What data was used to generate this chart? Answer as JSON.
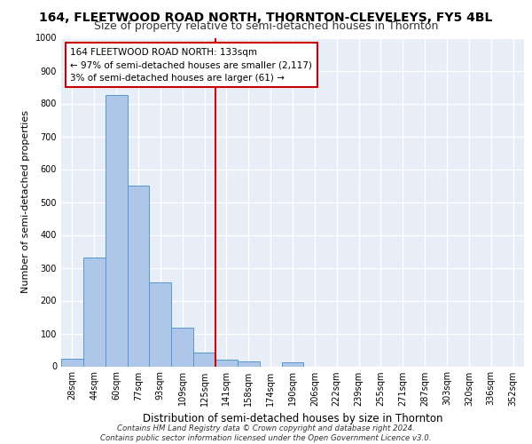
{
  "title1": "164, FLEETWOOD ROAD NORTH, THORNTON-CLEVELEYS, FY5 4BL",
  "title2": "Size of property relative to semi-detached houses in Thornton",
  "xlabel": "Distribution of semi-detached houses by size in Thornton",
  "ylabel": "Number of semi-detached properties",
  "footer1": "Contains HM Land Registry data © Crown copyright and database right 2024.",
  "footer2": "Contains public sector information licensed under the Open Government Licence v3.0.",
  "bar_labels": [
    "28sqm",
    "44sqm",
    "60sqm",
    "77sqm",
    "93sqm",
    "109sqm",
    "125sqm",
    "141sqm",
    "158sqm",
    "174sqm",
    "190sqm",
    "206sqm",
    "222sqm",
    "239sqm",
    "255sqm",
    "271sqm",
    "287sqm",
    "303sqm",
    "320sqm",
    "336sqm",
    "352sqm"
  ],
  "bar_values": [
    22,
    330,
    825,
    550,
    255,
    117,
    42,
    20,
    14,
    0,
    13,
    0,
    0,
    0,
    0,
    0,
    0,
    0,
    0,
    0,
    0
  ],
  "bar_color": "#aec6e8",
  "bar_edge_color": "#5599cc",
  "red_line_x": 6.5,
  "annotation_title": "164 FLEETWOOD ROAD NORTH: 133sqm",
  "annotation_line1": "← 97% of semi-detached houses are smaller (2,117)",
  "annotation_line2": "3% of semi-detached houses are larger (61) →",
  "ylim": [
    0,
    1000
  ],
  "yticks": [
    0,
    100,
    200,
    300,
    400,
    500,
    600,
    700,
    800,
    900,
    1000
  ],
  "background_color": "#e8eef8",
  "grid_color": "#ffffff",
  "annotation_box_color": "#ffffff",
  "annotation_box_edge": "#cc0000",
  "red_line_color": "#cc0000",
  "title1_fontsize": 10,
  "title2_fontsize": 9,
  "xlabel_fontsize": 8.5,
  "ylabel_fontsize": 8
}
